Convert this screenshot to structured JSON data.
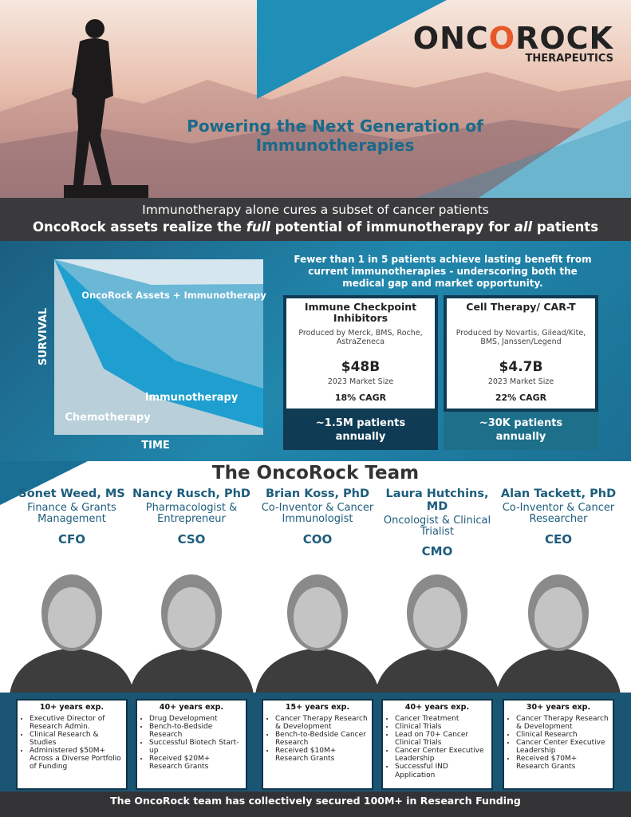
{
  "header": {
    "logo_parts": [
      "ONC",
      "O",
      "ROCK"
    ],
    "logo_sub": "THERAPEUTICS",
    "title": "Powering the Next Generation of Immunotherapies"
  },
  "banner": {
    "line1": "Immunotherapy alone cures a subset of cancer patients",
    "line2_parts": [
      "OncoRock assets realize the ",
      "full",
      " potential of immunotherapy for ",
      "all",
      " patients"
    ]
  },
  "diagram": {
    "y_label": "SURVIVAL",
    "x_label": "TIME",
    "curves": [
      "OncoRock Assets + Immunotherapy",
      "Immunotherapy",
      "Chemotherapy"
    ]
  },
  "market": {
    "intro": "Fewer than 1 in 5 patients achieve lasting benefit from current immunotherapies - underscoring both the medical gap and market opportunity.",
    "cards": [
      {
        "title": "Immune Checkpoint Inhibitors",
        "producers": "Produced by Merck, BMS, Roche, AstraZeneca",
        "size": "$48B",
        "size_label": "2023 Market Size",
        "cagr": "18% CAGR",
        "patients": "~1.5M patients annually"
      },
      {
        "title": "Cell Therapy/ CAR-T",
        "producers": "Produced by Novartis, Gilead/Kite, BMS, Janssen/Legend",
        "size": "$4.7B",
        "size_label": "2023 Market Size",
        "cagr": "22% CAGR",
        "patients": "~30K patients annually"
      }
    ]
  },
  "team": {
    "title": "The OncoRock Team",
    "members": [
      {
        "name": "Sonet Weed, MS",
        "role": "Finance & Grants Management",
        "position": "CFO",
        "experience": "10+ years exp.",
        "bullets": [
          "Executive Director of Research Admin.",
          "Clinical Research & Studies",
          "Administered $50M+ Across a Diverse Portfolio of Funding"
        ]
      },
      {
        "name": "Nancy Rusch, PhD",
        "role": "Pharmacologist & Entrepreneur",
        "position": "CSO",
        "experience": "40+ years exp.",
        "bullets": [
          "Drug Development",
          "Bench-to-Bedside Research",
          "Successful Biotech Start-up",
          "Received $20M+ Research Grants"
        ]
      },
      {
        "name": "Brian Koss, PhD",
        "role": "Co-Inventor & Cancer Immunologist",
        "position": "COO",
        "experience": "15+ years exp.",
        "bullets": [
          "Cancer Therapy Research & Development",
          "Bench-to-Bedside Cancer Research",
          "Received $10M+ Research Grants"
        ]
      },
      {
        "name": "Laura Hutchins, MD",
        "role": "Oncologist & Clinical Trialist",
        "position": "CMO",
        "experience": "40+ years exp.",
        "bullets": [
          "Cancer Treatment",
          "Clinical Trials",
          "Lead on 70+ Cancer Clinical Trials",
          "Cancer Center Executive Leadership",
          "Successful IND Application"
        ]
      },
      {
        "name": "Alan Tackett, PhD",
        "role": "Co-Inventor & Cancer Researcher",
        "position": "CEO",
        "experience": "30+ years exp.",
        "bullets": [
          "Cancer Therapy Research & Development",
          "Clinical Research",
          "Cancer Center Executive Leadership",
          "Received $70M+ Research Grants"
        ]
      }
    ]
  },
  "footer": "The OncoRock team has collectively secured 100M+ in Research Funding"
}
